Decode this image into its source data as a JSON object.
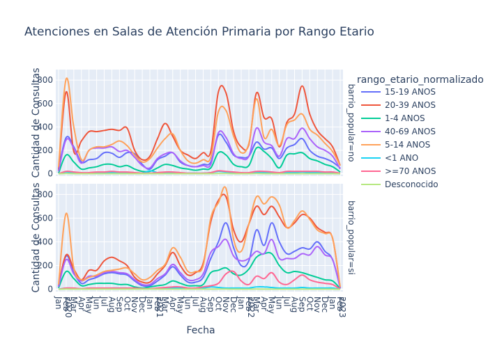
{
  "chart_data": {
    "type": "line",
    "title": "Atenciones en Salas de Atención Primaria por Rango Etario",
    "xlabel": "Fecha",
    "ylabel": "Cantidad de Consultas",
    "legend_title": "rango_etario_normalizado",
    "legend_placement": "right",
    "grid": true,
    "ylim": [
      -20,
      890
    ],
    "yticks": [
      0,
      200,
      400,
      600,
      800
    ],
    "x_tick_labels": [
      "Jan\n2020",
      "Feb",
      "Mar",
      "Apr",
      "May",
      "Jun",
      "Jul",
      "Aug",
      "Sep",
      "Oct",
      "Nov",
      "Dec",
      "Jan\n2021",
      "Feb",
      "Mar",
      "Apr",
      "May",
      "Jun",
      "Jul",
      "Aug",
      "Sep",
      "Oct",
      "Nov",
      "Dec",
      "Jan\n2022",
      "Feb",
      "Mar",
      "Apr",
      "May",
      "Jun",
      "Jul",
      "Aug",
      "Sep",
      "Oct",
      "Nov",
      "Dec",
      "Jan\n2023",
      "Feb"
    ],
    "facets": [
      "barrio_popular=no",
      "barrio_popular=si"
    ],
    "series_names": [
      "15-19 ANOS",
      "20-39 ANOS",
      "1-4 ANOS",
      "40-69 ANOS",
      "5-14 ANOS",
      "<1 ANO",
      ">=70 ANOS",
      "Desconocido"
    ],
    "colors": [
      "#636efa",
      "#EF553B",
      "#00cc96",
      "#ab63fa",
      "#FFA15A",
      "#19d3f3",
      "#FF6692",
      "#B6E880"
    ],
    "panels": [
      {
        "facet": "barrio_popular=no",
        "series": [
          {
            "name": "15-19 ANOS",
            "values": [
              40,
              310,
              230,
              100,
              120,
              130,
              180,
              175,
              140,
              180,
              170,
              80,
              40,
              120,
              150,
              180,
              100,
              70,
              60,
              80,
              100,
              330,
              270,
              160,
              140,
              150,
              270,
              210,
              220,
              130,
              220,
              250,
              300,
              200,
              150,
              130,
              100,
              50
            ]
          },
          {
            "name": "20-39 ANOS",
            "values": [
              30,
              700,
              190,
              280,
              360,
              360,
              370,
              380,
              370,
              390,
              200,
              120,
              150,
              300,
              430,
              320,
              200,
              160,
              130,
              180,
              190,
              700,
              690,
              360,
              230,
              250,
              690,
              480,
              470,
              230,
              440,
              510,
              750,
              510,
              370,
              300,
              230,
              70
            ]
          },
          {
            "name": "1-4 ANOS",
            "values": [
              5,
              160,
              100,
              40,
              50,
              60,
              80,
              80,
              60,
              70,
              40,
              20,
              20,
              50,
              80,
              70,
              50,
              40,
              30,
              40,
              50,
              180,
              160,
              80,
              60,
              70,
              220,
              190,
              130,
              50,
              160,
              170,
              180,
              130,
              110,
              80,
              60,
              15
            ]
          },
          {
            "name": "40-69 ANOS",
            "values": [
              20,
              290,
              220,
              90,
              200,
              220,
              220,
              230,
              190,
              200,
              140,
              70,
              50,
              130,
              170,
              180,
              110,
              70,
              60,
              70,
              80,
              350,
              310,
              170,
              130,
              150,
              390,
              270,
              240,
              150,
              300,
              300,
              390,
              300,
              230,
              200,
              150,
              40
            ]
          },
          {
            "name": "5-14 ANOS",
            "values": [
              60,
              810,
              400,
              120,
              200,
              230,
              230,
              250,
              280,
              240,
              160,
              100,
              130,
              220,
              300,
              340,
              200,
              110,
              90,
              120,
              140,
              530,
              540,
              320,
              180,
              260,
              640,
              310,
              380,
              240,
              420,
              460,
              510,
              380,
              330,
              260,
              190,
              70
            ]
          },
          {
            "name": "<1 ANO",
            "values": [
              0,
              15,
              5,
              5,
              5,
              10,
              10,
              10,
              10,
              10,
              5,
              5,
              25,
              10,
              10,
              10,
              5,
              5,
              5,
              5,
              10,
              20,
              15,
              10,
              5,
              5,
              10,
              10,
              10,
              5,
              10,
              10,
              15,
              10,
              10,
              5,
              5,
              0
            ]
          },
          {
            "name": ">=70 ANOS",
            "values": [
              0,
              20,
              15,
              10,
              10,
              15,
              15,
              20,
              15,
              15,
              10,
              5,
              5,
              10,
              15,
              15,
              10,
              5,
              5,
              5,
              10,
              25,
              20,
              15,
              10,
              10,
              20,
              20,
              15,
              10,
              20,
              20,
              20,
              20,
              20,
              15,
              15,
              5
            ]
          },
          {
            "name": "Desconocido",
            "values": [
              0,
              2,
              1,
              1,
              1,
              1,
              1,
              1,
              1,
              1,
              1,
              1,
              1,
              1,
              1,
              1,
              1,
              1,
              1,
              1,
              1,
              2,
              2,
              1,
              1,
              1,
              2,
              1,
              1,
              1,
              1,
              1,
              1,
              1,
              1,
              1,
              1,
              0
            ]
          }
        ]
      },
      {
        "facet": "barrio_popular=si",
        "series": [
          {
            "name": "15-19 ANOS",
            "values": [
              20,
              280,
              140,
              50,
              80,
              100,
              130,
              140,
              130,
              120,
              70,
              30,
              30,
              70,
              120,
              190,
              120,
              60,
              60,
              100,
              260,
              400,
              560,
              350,
              200,
              240,
              500,
              370,
              560,
              400,
              300,
              320,
              350,
              340,
              400,
              320,
              250,
              10
            ]
          },
          {
            "name": "20-39 ANOS",
            "values": [
              30,
              290,
              170,
              80,
              160,
              160,
              240,
              270,
              240,
              200,
              100,
              60,
              60,
              130,
              200,
              310,
              200,
              120,
              140,
              220,
              570,
              750,
              780,
              500,
              400,
              550,
              700,
              630,
              700,
              610,
              520,
              560,
              630,
              600,
              520,
              480,
              430,
              10
            ]
          },
          {
            "name": "1-4 ANOS",
            "values": [
              10,
              150,
              90,
              30,
              40,
              50,
              50,
              50,
              40,
              40,
              20,
              10,
              20,
              30,
              40,
              70,
              50,
              30,
              30,
              40,
              140,
              160,
              180,
              130,
              120,
              170,
              270,
              300,
              300,
              200,
              140,
              150,
              140,
              120,
              100,
              80,
              70,
              5
            ]
          },
          {
            "name": "40-69 ANOS",
            "values": [
              20,
              250,
              130,
              70,
              110,
              110,
              140,
              150,
              140,
              130,
              80,
              40,
              40,
              90,
              130,
              210,
              140,
              80,
              80,
              130,
              310,
              360,
              420,
              280,
              240,
              260,
              320,
              300,
              420,
              260,
              260,
              260,
              300,
              290,
              360,
              290,
              250,
              10
            ]
          },
          {
            "name": "5-14 ANOS",
            "values": [
              40,
              640,
              180,
              80,
              100,
              120,
              150,
              160,
              170,
              180,
              130,
              80,
              100,
              160,
              210,
              350,
              270,
              150,
              150,
              200,
              600,
              730,
              850,
              420,
              320,
              550,
              780,
              720,
              780,
              710,
              520,
              580,
              660,
              590,
              500,
              470,
              430,
              20
            ]
          },
          {
            "name": "<1 ANO",
            "values": [
              0,
              10,
              5,
              5,
              5,
              5,
              5,
              10,
              10,
              10,
              5,
              5,
              5,
              5,
              5,
              10,
              10,
              5,
              5,
              10,
              20,
              15,
              10,
              10,
              10,
              10,
              20,
              20,
              15,
              10,
              10,
              10,
              15,
              10,
              10,
              10,
              10,
              0
            ]
          },
          {
            "name": ">=70 ANOS",
            "values": [
              0,
              10,
              10,
              5,
              10,
              10,
              10,
              10,
              10,
              10,
              10,
              5,
              5,
              10,
              15,
              20,
              20,
              10,
              10,
              20,
              30,
              50,
              130,
              150,
              70,
              40,
              110,
              90,
              140,
              60,
              40,
              80,
              120,
              80,
              60,
              50,
              40,
              0
            ]
          },
          {
            "name": "Desconocido",
            "values": [
              0,
              2,
              1,
              1,
              1,
              1,
              1,
              1,
              1,
              1,
              1,
              1,
              1,
              1,
              1,
              1,
              1,
              1,
              1,
              1,
              1,
              2,
              2,
              1,
              1,
              1,
              2,
              1,
              1,
              1,
              1,
              1,
              1,
              1,
              1,
              1,
              1,
              0
            ]
          }
        ]
      }
    ]
  }
}
